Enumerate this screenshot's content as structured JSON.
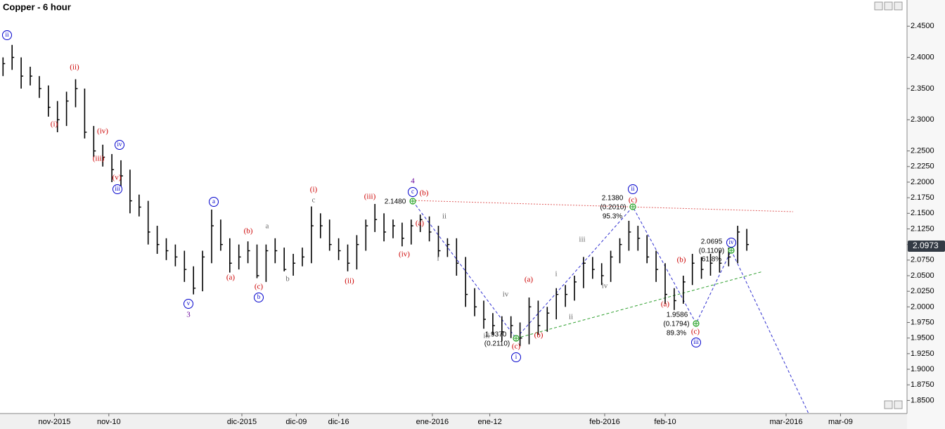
{
  "chart_data": {
    "type": "ohlc",
    "title": "Copper - 6 hour",
    "x": [
      1,
      4,
      7,
      10,
      13,
      16,
      19,
      22,
      25,
      28,
      31,
      34,
      37,
      40,
      43,
      46,
      49,
      52,
      55,
      58,
      61,
      64,
      67,
      70,
      73,
      76,
      79,
      82,
      85,
      88,
      91,
      94,
      97,
      100,
      103,
      106,
      109,
      112,
      115,
      118,
      121,
      124,
      127,
      130,
      133,
      136,
      139,
      142,
      145,
      148,
      151,
      154,
      157,
      160,
      163,
      166,
      169,
      172,
      175,
      178,
      181,
      184,
      187,
      190,
      193,
      196,
      199,
      202,
      205,
      208,
      211,
      214,
      217,
      220,
      223,
      226,
      229,
      232,
      235,
      238,
      241,
      244,
      247
    ],
    "high": [
      2.4,
      2.42,
      2.4,
      2.385,
      2.37,
      2.355,
      2.33,
      2.345,
      2.365,
      2.35,
      2.29,
      2.26,
      2.245,
      2.235,
      2.22,
      2.18,
      2.17,
      2.13,
      2.11,
      2.1,
      2.09,
      2.065,
      2.09,
      2.156,
      2.14,
      2.11,
      2.1,
      2.105,
      2.1,
      2.1,
      2.11,
      2.095,
      2.085,
      2.095,
      2.161,
      2.15,
      2.14,
      2.11,
      2.1,
      2.115,
      2.14,
      2.165,
      2.15,
      2.14,
      2.135,
      2.14,
      2.148,
      2.145,
      2.13,
      2.11,
      2.11,
      2.08,
      2.03,
      2.01,
      1.99,
      1.985,
      1.985,
      1.975,
      2.015,
      2.01,
      2.0,
      2.03,
      2.035,
      2.05,
      2.08,
      2.08,
      2.07,
      2.09,
      2.11,
      2.138,
      2.13,
      2.115,
      2.09,
      2.07,
      2.03,
      2.05,
      2.085,
      2.08,
      2.085,
      2.09,
      2.095,
      2.13,
      2.125
    ],
    "low": [
      2.37,
      2.38,
      2.35,
      2.355,
      2.335,
      2.305,
      2.28,
      2.29,
      2.32,
      2.27,
      2.24,
      2.225,
      2.2,
      2.19,
      2.15,
      2.145,
      2.1,
      2.085,
      2.075,
      2.065,
      2.04,
      2.02,
      2.025,
      2.07,
      2.09,
      2.055,
      2.06,
      2.07,
      2.046,
      2.04,
      2.07,
      2.057,
      2.05,
      2.065,
      2.07,
      2.11,
      2.09,
      2.075,
      2.057,
      2.06,
      2.09,
      2.12,
      2.105,
      2.11,
      2.097,
      2.1,
      2.12,
      2.105,
      2.08,
      2.08,
      2.05,
      2.0,
      1.985,
      1.965,
      1.955,
      1.945,
      1.95,
      1.937,
      1.94,
      1.955,
      1.96,
      1.98,
      2.0,
      2.01,
      2.03,
      2.045,
      2.035,
      2.04,
      2.07,
      2.09,
      2.09,
      2.07,
      2.04,
      2.005,
      1.995,
      2.005,
      2.035,
      2.045,
      2.05,
      2.055,
      2.065,
      2.07,
      2.09
    ],
    "close": [
      2.39,
      2.4,
      2.37,
      2.37,
      2.35,
      2.32,
      2.3,
      2.33,
      2.35,
      2.28,
      2.25,
      2.24,
      2.22,
      2.21,
      2.17,
      2.16,
      2.12,
      2.1,
      2.09,
      2.08,
      2.06,
      2.03,
      2.08,
      2.13,
      2.1,
      2.07,
      2.08,
      2.09,
      2.05,
      2.09,
      2.09,
      2.06,
      2.07,
      2.08,
      2.13,
      2.13,
      2.1,
      2.09,
      2.07,
      2.1,
      2.13,
      2.14,
      2.12,
      2.13,
      2.11,
      2.13,
      2.14,
      2.12,
      2.09,
      2.1,
      2.07,
      2.02,
      2.0,
      1.98,
      1.97,
      1.96,
      1.97,
      1.95,
      2.0,
      1.97,
      1.99,
      2.02,
      2.02,
      2.04,
      2.07,
      2.06,
      2.05,
      2.08,
      2.1,
      2.12,
      2.11,
      2.08,
      2.06,
      2.02,
      2.01,
      2.04,
      2.07,
      2.06,
      2.07,
      2.07,
      2.08,
      2.12,
      2.1
    ],
    "color": "#000000",
    "xlim": [
      0,
      300
    ],
    "xticks": [
      {
        "value": 18,
        "label": "nov-2015"
      },
      {
        "value": 36,
        "label": "nov-10"
      },
      {
        "value": 80,
        "label": "dic-2015"
      },
      {
        "value": 98,
        "label": "dic-09"
      },
      {
        "value": 112,
        "label": "dic-16"
      },
      {
        "value": 143,
        "label": "ene-2016"
      },
      {
        "value": 162,
        "label": "ene-12"
      },
      {
        "value": 200,
        "label": "feb-2016"
      },
      {
        "value": 220,
        "label": "feb-10"
      },
      {
        "value": 260,
        "label": "mar-2016"
      },
      {
        "value": 278,
        "label": "mar-09"
      }
    ],
    "ylim": [
      1.829,
      2.492
    ],
    "yticks": [
      {
        "value": 1.85,
        "label": "1.8500"
      },
      {
        "value": 1.875,
        "label": "1.8750"
      },
      {
        "value": 1.9,
        "label": "1.9000"
      },
      {
        "value": 1.925,
        "label": "1.9250"
      },
      {
        "value": 1.95,
        "label": "1.9500"
      },
      {
        "value": 1.975,
        "label": "1.9750"
      },
      {
        "value": 2.0,
        "label": "2.0000"
      },
      {
        "value": 2.025,
        "label": "2.0250"
      },
      {
        "value": 2.05,
        "label": "2.0500"
      },
      {
        "value": 2.075,
        "label": "2.0750"
      },
      {
        "value": 2.1,
        "label": "2.1000"
      },
      {
        "value": 2.125,
        "label": "2.1250"
      },
      {
        "value": 2.15,
        "label": "2.1500"
      },
      {
        "value": 2.175,
        "label": "2.1750"
      },
      {
        "value": 2.2,
        "label": "2.2000"
      },
      {
        "value": 2.225,
        "label": "2.2250"
      },
      {
        "value": 2.25,
        "label": "2.2500"
      },
      {
        "value": 2.3,
        "label": "2.3000"
      },
      {
        "value": 2.35,
        "label": "2.3500"
      },
      {
        "value": 2.4,
        "label": "2.4000"
      },
      {
        "value": 2.45,
        "label": "2.4500"
      }
    ],
    "last_price": 2.0973,
    "annotations": [
      {
        "text": "ii",
        "color": "#0000cc",
        "circled": true
      },
      {
        "text": "(ii)",
        "color": "#cc0000",
        "circled": false
      },
      {
        "text": "(i)",
        "color": "#cc0000",
        "circled": false
      },
      {
        "text": "(iv)",
        "color": "#cc0000",
        "circled": false
      },
      {
        "text": "iv",
        "color": "#0000cc",
        "circled": true
      },
      {
        "text": "(iii)",
        "color": "#cc0000",
        "circled": false
      },
      {
        "text": "(v)",
        "color": "#cc0000",
        "circled": false
      },
      {
        "text": "iii",
        "color": "#0000cc",
        "circled": true
      },
      {
        "text": "a",
        "color": "#0000cc",
        "circled": true
      },
      {
        "text": "(b)",
        "color": "#cc0000",
        "circled": false
      },
      {
        "text": "a",
        "color": "#666666",
        "circled": false
      },
      {
        "text": "(a)",
        "color": "#cc0000",
        "circled": false
      },
      {
        "text": "(c)",
        "color": "#cc0000",
        "circled": false
      },
      {
        "text": "b",
        "color": "#0000cc",
        "circled": true
      },
      {
        "text": "b",
        "color": "#666666",
        "circled": false
      },
      {
        "text": "v",
        "color": "#0000cc",
        "circled": true
      },
      {
        "text": "3",
        "color": "#660099",
        "circled": false
      },
      {
        "text": "(i)",
        "color": "#cc0000",
        "circled": false
      },
      {
        "text": "c",
        "color": "#666666",
        "circled": false
      },
      {
        "text": "(iii)",
        "color": "#cc0000",
        "circled": false
      },
      {
        "text": "(ii)",
        "color": "#cc0000",
        "circled": false
      },
      {
        "text": "c",
        "color": "#0000cc",
        "circled": true
      },
      {
        "text": "4",
        "color": "#660099",
        "circled": false
      },
      {
        "text": "(b)",
        "color": "#cc0000",
        "circled": false
      },
      {
        "text": "(a)",
        "color": "#cc0000",
        "circled": false
      },
      {
        "text": "(iv)",
        "color": "#cc0000",
        "circled": false
      },
      {
        "text": "ii",
        "color": "#666666",
        "circled": false
      },
      {
        "text": "i",
        "color": "#666666",
        "circled": false
      },
      {
        "text": "iv",
        "color": "#666666",
        "circled": false
      },
      {
        "text": "iii",
        "color": "#666666",
        "circled": false
      },
      {
        "text": "(a)",
        "color": "#cc0000",
        "circled": false
      },
      {
        "text": "(b)",
        "color": "#cc0000",
        "circled": false
      },
      {
        "text": "(c)",
        "color": "#cc0000",
        "circled": false
      },
      {
        "text": "i",
        "color": "#0000cc",
        "circled": true
      },
      {
        "text": "i",
        "color": "#666666",
        "circled": false
      },
      {
        "text": "ii",
        "color": "#666666",
        "circled": false
      },
      {
        "text": "iii",
        "color": "#666666",
        "circled": false
      },
      {
        "text": "iv",
        "color": "#666666",
        "circled": false
      },
      {
        "text": "ii",
        "color": "#0000cc",
        "circled": true
      },
      {
        "text": "(c)",
        "color": "#cc0000",
        "circled": false
      },
      {
        "text": "(a)",
        "color": "#cc0000",
        "circled": false
      },
      {
        "text": "(b)",
        "color": "#cc0000",
        "circled": false
      },
      {
        "text": "(c)",
        "color": "#cc0000",
        "circled": false
      },
      {
        "text": "iii",
        "color": "#0000cc",
        "circled": true
      },
      {
        "text": "iv",
        "color": "#0000cc",
        "circled": true
      },
      {
        "text": "2.1480",
        "color": "#000000",
        "circled": false
      },
      {
        "text": "1.9370",
        "color": "#000000",
        "circled": false
      },
      {
        "text": "(0.2110)",
        "color": "#000000",
        "circled": false
      },
      {
        "text": "2.1380",
        "color": "#000000",
        "circled": false
      },
      {
        "text": "(0.2010)",
        "color": "#000000",
        "circled": false
      },
      {
        "text": "95.3%",
        "color": "#000000",
        "circled": false
      },
      {
        "text": "1.9586",
        "color": "#000000",
        "circled": false
      },
      {
        "text": "(0.1794)",
        "color": "#000000",
        "circled": false
      },
      {
        "text": "89.3%",
        "color": "#000000",
        "circled": false
      },
      {
        "text": "2.0695",
        "color": "#000000",
        "circled": false
      },
      {
        "text": "(0.1109)",
        "color": "#000000",
        "circled": false
      },
      {
        "text": "61.8%",
        "color": "#000000",
        "circled": false
      }
    ]
  }
}
